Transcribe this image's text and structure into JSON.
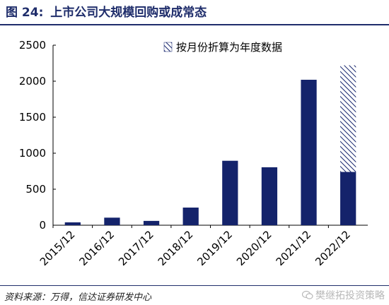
{
  "header": {
    "figure_label": "图 24:",
    "title": "上市公司大规模回购或成常态"
  },
  "footer": {
    "source": "资料来源：万得，信达证券研发中心",
    "watermark": "樊继拓投资策略"
  },
  "colors": {
    "bar": "#14236b",
    "title": "#1f2d6b",
    "hatch": "#14236b"
  },
  "chart_data": {
    "type": "bar",
    "title": "",
    "xlabel": "",
    "ylabel": "",
    "categories": [
      "2015/12",
      "2016/12",
      "2017/12",
      "2018/12",
      "2019/12",
      "2020/12",
      "2021/12",
      "2022/12"
    ],
    "series": [
      {
        "values": [
          40,
          105,
          60,
          245,
          895,
          805,
          2020,
          740
        ]
      },
      {
        "name": "按月份折算为年度数据",
        "pattern": "hatched",
        "values": [
          0,
          0,
          0,
          0,
          0,
          0,
          0,
          1480
        ]
      }
    ],
    "ylim": [
      0,
      2500
    ],
    "yticks": [
      0,
      500,
      1000,
      1500,
      2000,
      2500
    ],
    "grid": false,
    "legend_position": "top-right",
    "stacked": true
  }
}
